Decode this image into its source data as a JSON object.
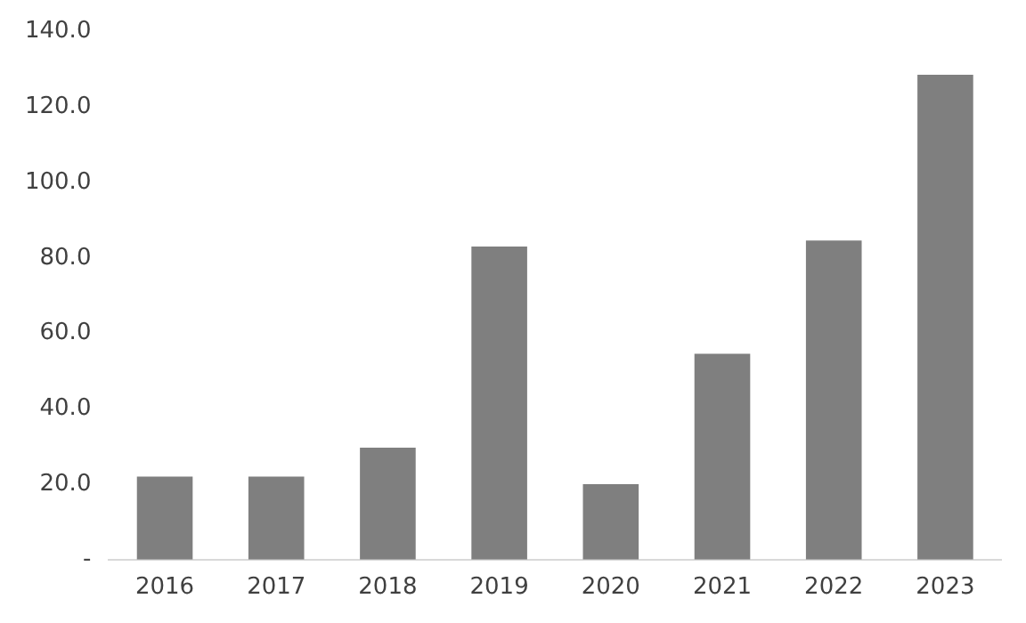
{
  "chart_data": {
    "type": "bar",
    "categories": [
      "2016",
      "2017",
      "2018",
      "2019",
      "2020",
      "2021",
      "2022",
      "2023"
    ],
    "values": [
      22,
      22,
      29.7,
      83,
      20,
      54.6,
      84.6,
      128.6
    ],
    "color": "#7f7f7f",
    "ylim": [
      0,
      140
    ],
    "yticks": [
      {
        "value": 0,
        "label": "-"
      },
      {
        "value": 20,
        "label": "20.0"
      },
      {
        "value": 40,
        "label": "40.0"
      },
      {
        "value": 60,
        "label": "60.0"
      },
      {
        "value": 80,
        "label": "80.0"
      },
      {
        "value": 100,
        "label": "100.0"
      },
      {
        "value": 120,
        "label": "120.0"
      },
      {
        "value": 140,
        "label": "140.0"
      }
    ],
    "grid": false,
    "legend": false
  }
}
